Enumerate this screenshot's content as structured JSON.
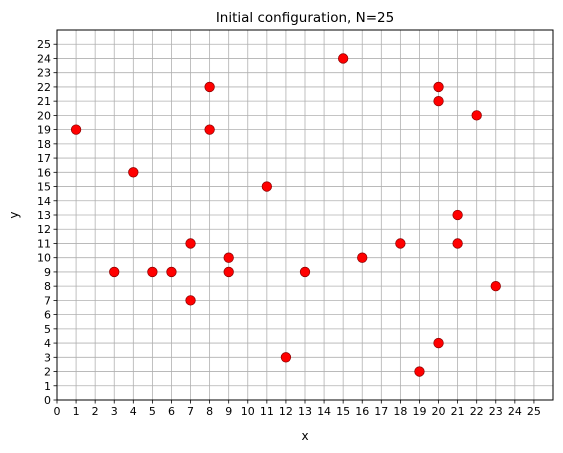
{
  "chart_data": {
    "type": "scatter",
    "title": "Initial configuration, N=25",
    "xlabel": "x",
    "ylabel": "y",
    "xlim": [
      0,
      26
    ],
    "ylim": [
      0,
      26
    ],
    "xticks": [
      0,
      1,
      2,
      3,
      4,
      5,
      6,
      7,
      8,
      9,
      10,
      11,
      12,
      13,
      14,
      15,
      16,
      17,
      18,
      19,
      20,
      21,
      22,
      23,
      24,
      25
    ],
    "yticks": [
      0,
      1,
      2,
      3,
      4,
      5,
      6,
      7,
      8,
      9,
      10,
      11,
      12,
      13,
      14,
      15,
      16,
      17,
      18,
      19,
      20,
      21,
      22,
      23,
      24,
      25
    ],
    "grid": true,
    "marker_color": "#ff0000",
    "marker_edge_color": "#8b0000",
    "points": [
      {
        "x": 1,
        "y": 19
      },
      {
        "x": 3,
        "y": 9
      },
      {
        "x": 4,
        "y": 16
      },
      {
        "x": 5,
        "y": 9
      },
      {
        "x": 6,
        "y": 9
      },
      {
        "x": 7,
        "y": 11
      },
      {
        "x": 7,
        "y": 7
      },
      {
        "x": 8,
        "y": 22
      },
      {
        "x": 8,
        "y": 19
      },
      {
        "x": 9,
        "y": 10
      },
      {
        "x": 9,
        "y": 9
      },
      {
        "x": 11,
        "y": 15
      },
      {
        "x": 12,
        "y": 3
      },
      {
        "x": 13,
        "y": 9
      },
      {
        "x": 15,
        "y": 24
      },
      {
        "x": 16,
        "y": 10
      },
      {
        "x": 18,
        "y": 11
      },
      {
        "x": 19,
        "y": 2
      },
      {
        "x": 20,
        "y": 22
      },
      {
        "x": 20,
        "y": 21
      },
      {
        "x": 20,
        "y": 4
      },
      {
        "x": 21,
        "y": 13
      },
      {
        "x": 21,
        "y": 11
      },
      {
        "x": 22,
        "y": 20
      },
      {
        "x": 23,
        "y": 8
      }
    ]
  }
}
